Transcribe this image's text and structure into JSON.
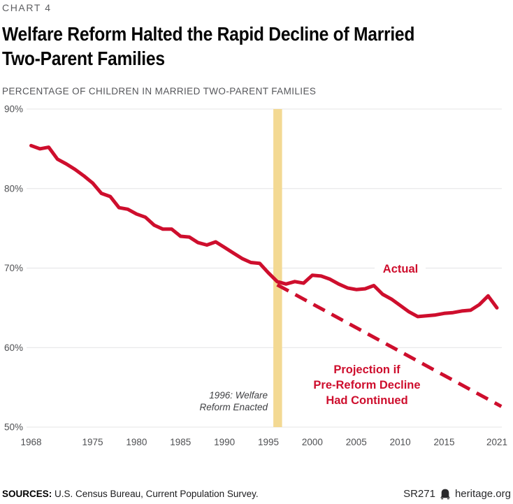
{
  "header": {
    "kicker": "CHART 4",
    "title_lines": [
      "Welfare Reform Halted the Rapid Decline of Married",
      "Two-Parent Families"
    ],
    "subtitle": "PERCENTAGE OF CHILDREN IN MARRIED TWO-PARENT FAMILIES"
  },
  "chart_data": {
    "type": "line",
    "title": "Welfare Reform Halted the Rapid Decline of Married Two-Parent Families",
    "ylabel": "Percentage of children in married two-parent families",
    "x_domain": [
      1968,
      2021
    ],
    "y_domain": [
      50,
      90
    ],
    "grid": true,
    "y_ticks": [
      "90%",
      "80%",
      "70%",
      "60%",
      "50%"
    ],
    "x_ticks": [
      1968,
      1975,
      1980,
      1985,
      1990,
      1995,
      2000,
      2005,
      2010,
      2015,
      2021
    ],
    "series": [
      {
        "name": "Actual",
        "style": "solid",
        "color": "#ce0e2d",
        "x_start": 1968,
        "x_step": 1,
        "values": [
          85.4,
          85.0,
          85.2,
          83.7,
          83.1,
          82.4,
          81.6,
          80.7,
          79.4,
          79.0,
          77.6,
          77.4,
          76.8,
          76.4,
          75.4,
          74.9,
          74.9,
          74.0,
          73.9,
          73.2,
          72.9,
          73.3,
          72.6,
          71.9,
          71.2,
          70.7,
          70.6,
          69.4,
          68.3,
          68.0,
          68.3,
          68.1,
          69.1,
          69.0,
          68.6,
          68.0,
          67.5,
          67.3,
          67.4,
          67.8,
          66.7,
          66.1,
          65.3,
          64.5,
          63.9,
          64.0,
          64.1,
          64.3,
          64.4,
          64.6,
          64.7,
          65.4,
          66.5,
          65.0
        ]
      },
      {
        "name": "Projection if Pre-Reform Decline Had Continued",
        "style": "dashed",
        "color": "#ce0e2d",
        "x": [
          1996,
          2021.5
        ],
        "values": [
          67.9,
          52.6
        ]
      }
    ],
    "event_band": {
      "year": 1996,
      "color": "#f3d993",
      "label_lines": [
        "1996: Welfare",
        "Reform Enacted"
      ]
    },
    "annotations": {
      "actual_label": "Actual",
      "projection_label_lines": [
        "Projection if",
        "Pre-Reform Decline",
        "Had Continued"
      ]
    },
    "legend_position": "inline-annotations"
  },
  "footer": {
    "sources_label": "SOURCES:",
    "sources_text": " U.S. Census Bureau, Current Population Survey.",
    "report_id": "SR271",
    "site": "heritage.org"
  },
  "colors": {
    "accent_red": "#ce0e2d",
    "band_gold": "#f3d993",
    "grid_gray": "#e4e4e6",
    "axis_text_gray": "#4f5053"
  }
}
